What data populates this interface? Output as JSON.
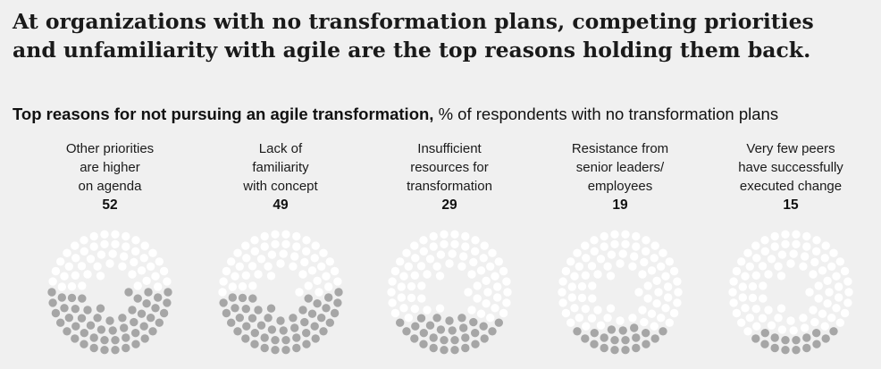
{
  "headline": "At organizations with no transformation plans, competing priorities and unfamiliarity with agile are the top reasons holding them back.",
  "subtitle": {
    "bold": "Top reasons for not pursuing an agile transformation,",
    "rest": " % of respondents with no transformation plans"
  },
  "colors": {
    "filled": "#a6a6a6",
    "empty": "#ffffff",
    "background": "#f0f0f0"
  },
  "chart_data": {
    "type": "dot-circle",
    "title": "Top reasons for not pursuing an agile transformation",
    "unit": "% of respondents with no transformation plans",
    "categories": [
      "Other priorities\nare higher\non agenda",
      "Lack of\nfamiliarity\nwith concept",
      "Insufficient\nresources for\ntransformation",
      "Resistance from\nsenior leaders/\nemployees",
      "Very few peers\nhave successfully\nexecuted change"
    ],
    "values": [
      52,
      49,
      29,
      19,
      15
    ],
    "value_labels": [
      "52",
      "49",
      "29",
      "19",
      "15"
    ]
  }
}
